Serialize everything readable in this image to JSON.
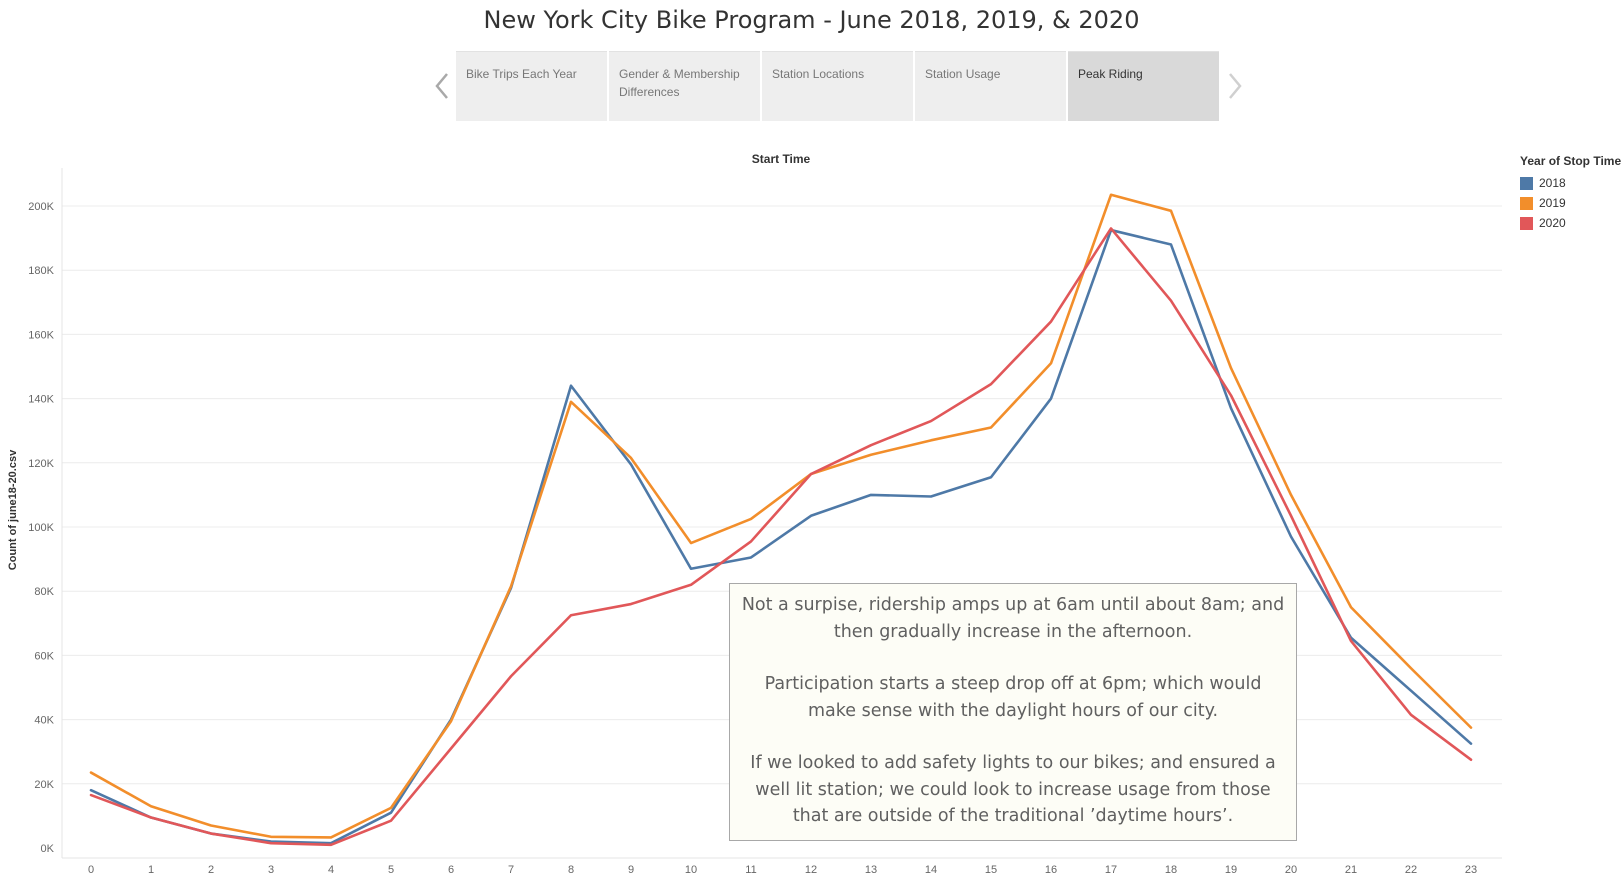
{
  "page": {
    "title": "New York City Bike Program - June 2018, 2019, & 2020"
  },
  "story_nav": {
    "prev_icon": "chevron-left-icon",
    "next_icon": "chevron-right-icon",
    "tabs": [
      {
        "label": "Bike Trips Each Year",
        "active": false
      },
      {
        "label": "Gender & Membership Differences",
        "active": false
      },
      {
        "label": "Station Locations",
        "active": false
      },
      {
        "label": "Station Usage",
        "active": false
      },
      {
        "label": "Peak Riding",
        "active": true
      }
    ]
  },
  "chart_data": {
    "type": "line",
    "title": "Start Time",
    "xlabel": "Start Time",
    "ylabel": "Count of june18-20.csv",
    "x": [
      0,
      1,
      2,
      3,
      4,
      5,
      6,
      7,
      8,
      9,
      10,
      11,
      12,
      13,
      14,
      15,
      16,
      17,
      18,
      19,
      20,
      21,
      22,
      23
    ],
    "ylim": [
      0,
      210000
    ],
    "yticks": [
      0,
      20000,
      40000,
      60000,
      80000,
      100000,
      120000,
      140000,
      160000,
      180000,
      200000
    ],
    "ytick_labels": [
      "0K",
      "20K",
      "40K",
      "60K",
      "80K",
      "100K",
      "120K",
      "140K",
      "160K",
      "180K",
      "200K"
    ],
    "grid": true,
    "legend": {
      "title": "Year of Stop Time",
      "placement": "right"
    },
    "series": [
      {
        "name": "2018",
        "color": "#4e79a7",
        "values": [
          18000,
          9500,
          4500,
          2000,
          1500,
          11000,
          40000,
          81000,
          144000,
          119500,
          87000,
          90500,
          103500,
          110000,
          109500,
          115500,
          140000,
          192500,
          188000,
          137000,
          97000,
          65500,
          49000,
          32500
        ]
      },
      {
        "name": "2019",
        "color": "#f28e2b",
        "values": [
          23500,
          13000,
          7000,
          3500,
          3300,
          12500,
          39500,
          81500,
          139000,
          121500,
          95000,
          102500,
          116500,
          122500,
          127000,
          131000,
          151000,
          203500,
          198500,
          149500,
          110000,
          75000,
          56000,
          37500
        ]
      },
      {
        "name": "2020",
        "color": "#e15759",
        "values": [
          16500,
          9500,
          4500,
          1500,
          1000,
          8500,
          31000,
          53500,
          72500,
          76000,
          82000,
          95500,
          116500,
          125500,
          133000,
          144500,
          164000,
          193000,
          170500,
          141000,
          103500,
          64500,
          41500,
          27500
        ]
      }
    ]
  },
  "annotation": {
    "paragraphs": [
      "Not a surpise, ridership amps up at 6am until about 8am; and then gradually increase in the afternoon.",
      "Participation starts a steep drop off at 6pm; which would make sense with the daylight hours of our city.",
      "If we looked to add safety lights to our bikes; and ensured a well lit station; we could look to increase usage from those that are outside of the traditional ’daytime hours’."
    ]
  }
}
